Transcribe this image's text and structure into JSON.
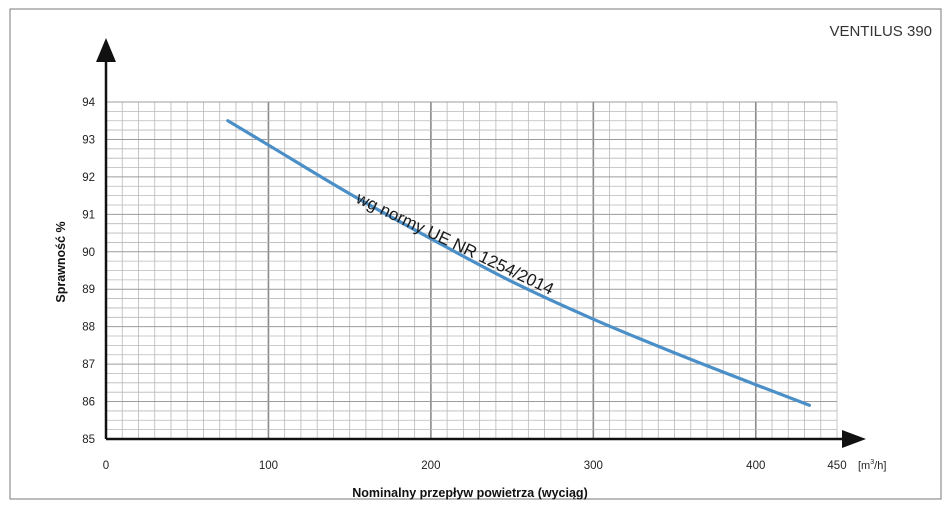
{
  "chart_data": {
    "type": "line",
    "title": "VENTILUS 390",
    "xlabel": "Nominalny przepływ powietrza (wyciąg)",
    "ylabel": "Sprawność %",
    "x_unit": "[m³/h]",
    "xlim": [
      0,
      450
    ],
    "ylim": [
      85,
      94
    ],
    "x_ticks": [
      0,
      100,
      200,
      300,
      400,
      450
    ],
    "y_ticks": [
      85,
      86,
      87,
      88,
      89,
      90,
      91,
      92,
      93,
      94
    ],
    "grid": true,
    "annotation": "wg normy UE NR 1254/2014",
    "series": [
      {
        "color": "#4a8fc8",
        "points": [
          [
            75,
            93.5
          ],
          [
            100,
            92.85
          ],
          [
            150,
            91.55
          ],
          [
            200,
            90.35
          ],
          [
            250,
            89.2
          ],
          [
            300,
            88.2
          ],
          [
            350,
            87.3
          ],
          [
            400,
            86.45
          ],
          [
            433,
            85.9
          ]
        ]
      }
    ]
  }
}
